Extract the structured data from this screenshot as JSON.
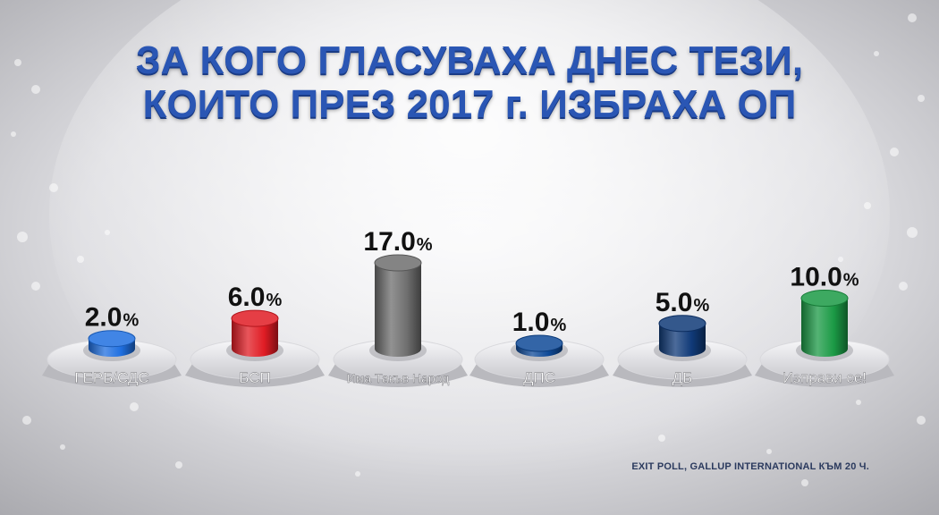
{
  "title": {
    "line1": "ЗА КОГО ГЛАСУВАХА ДНЕС ТЕЗИ,",
    "line2": "КОИТО ПРЕЗ 2017 г. ИЗБРАХА ОП"
  },
  "footnote": "EXIT POLL, GALLUP INTERNATIONAL КЪМ 20 Ч.",
  "colors": {
    "title": "#2a56b4",
    "background": "#bfbfc4"
  },
  "chart_data": {
    "type": "bar",
    "categories": [
      "ГЕРБ/СДС",
      "БСП",
      "Има Такъв Народ",
      "ДПС",
      "ДБ",
      "Изправи се!"
    ],
    "values": [
      2.0,
      6.0,
      17.0,
      1.0,
      5.0,
      10.0
    ],
    "value_labels": [
      "2.0",
      "6.0",
      "17.0",
      "1.0",
      "5.0",
      "10.0"
    ],
    "unit": "%",
    "bar_colors": [
      "#1f6fe0",
      "#e01c24",
      "#6e6e6e",
      "#0f4a98",
      "#103a78",
      "#1b9a45"
    ],
    "ylim": [
      0,
      17
    ]
  }
}
